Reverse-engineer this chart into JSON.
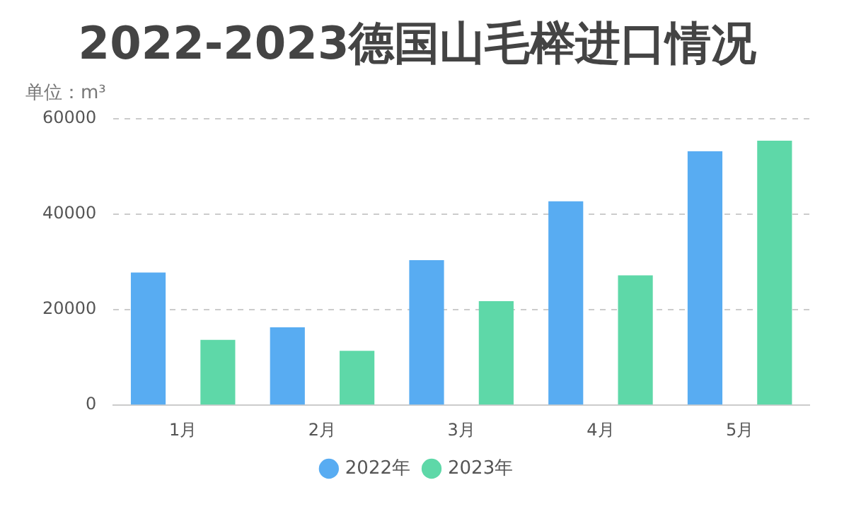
{
  "chart_data": {
    "type": "bar",
    "title": "2022-2023德国山毛榉进口情况",
    "subtitle": "单位：m³",
    "categories": [
      "1月",
      "2月",
      "3月",
      "4月",
      "5月"
    ],
    "series": [
      {
        "name": "2022年",
        "color": "#58acf2",
        "values": [
          27800,
          16300,
          30400,
          42700,
          53200
        ]
      },
      {
        "name": "2023年",
        "color": "#5ed8a8",
        "values": [
          13700,
          11400,
          21800,
          27200,
          55400
        ]
      }
    ],
    "ylim": [
      0,
      60000
    ],
    "yticks": [
      0,
      20000,
      40000,
      60000
    ],
    "grid": "y",
    "legend": "bottom"
  }
}
